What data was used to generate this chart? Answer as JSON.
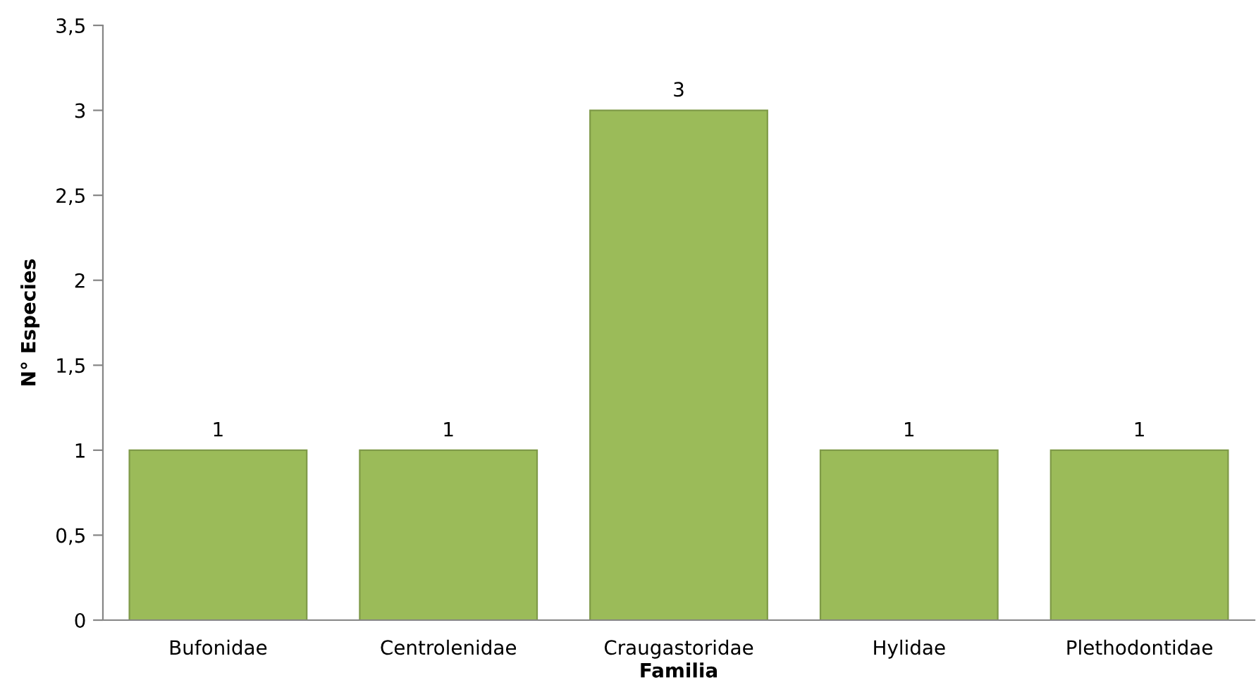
{
  "chart_data": {
    "type": "bar",
    "xlabel": "Familia",
    "ylabel": "N° Especies",
    "categories": [
      "Bufonidae",
      "Centrolenidae",
      "Craugastoridae",
      "Hylidae",
      "Plethodontidae"
    ],
    "values": [
      1,
      1,
      3,
      1,
      1
    ],
    "color": "#9bbb59",
    "ylim": [
      0,
      3.5
    ],
    "yticks": [
      0,
      {
        "value": 0.5,
        "label": "0,5"
      },
      1,
      {
        "value": 1.5,
        "label": "1,5"
      },
      2,
      {
        "value": 2.5,
        "label": "2,5"
      },
      3,
      {
        "value": 3.5,
        "label": "3,5"
      }
    ],
    "grid": false,
    "data_labels": true
  }
}
